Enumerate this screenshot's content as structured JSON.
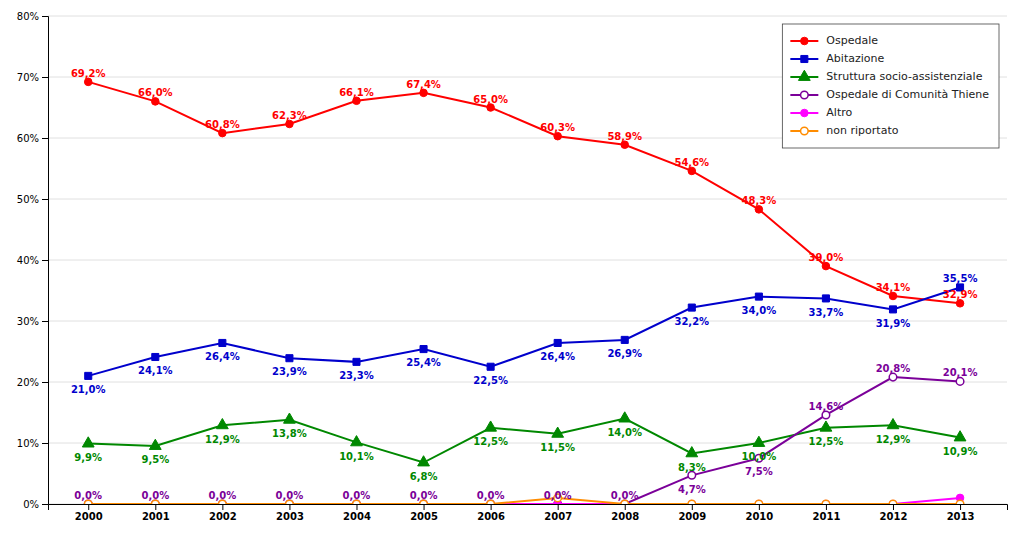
{
  "chart_data": {
    "type": "line",
    "x": [
      2000,
      2001,
      2002,
      2003,
      2004,
      2005,
      2006,
      2007,
      2008,
      2009,
      2010,
      2011,
      2012,
      2013
    ],
    "xlim": [
      1999.4,
      2013.7
    ],
    "xticks": [
      2000,
      2001,
      2002,
      2003,
      2004,
      2005,
      2006,
      2007,
      2008,
      2009,
      2010,
      2011,
      2012,
      2013
    ],
    "ylim": [
      0,
      80
    ],
    "yticks": [
      {
        "value": 0,
        "label": "0%"
      },
      {
        "value": 10,
        "label": "10%"
      },
      {
        "value": 20,
        "label": "20%"
      },
      {
        "value": 30,
        "label": "30%"
      },
      {
        "value": 40,
        "label": "40%"
      },
      {
        "value": 50,
        "label": "50%"
      },
      {
        "value": 60,
        "label": "60%"
      },
      {
        "value": 70,
        "label": "70%"
      },
      {
        "value": 80,
        "label": "80%"
      }
    ],
    "grid": true,
    "legend": "upper right",
    "data_labels": true,
    "series": [
      {
        "name": "Ospedale",
        "color": "#FF0000",
        "marker": "circle",
        "values": [
          69.2,
          66.0,
          60.8,
          62.3,
          66.1,
          67.4,
          65.0,
          60.3,
          58.9,
          54.6,
          48.3,
          39.0,
          34.1,
          32.9
        ],
        "value_labels": [
          "69,2%",
          "66,0%",
          "60,8%",
          "62,3%",
          "66,1%",
          "67,4%",
          "65,0%",
          "60,3%",
          "58,9%",
          "54,6%",
          "48,3%",
          "39,0%",
          "34,1%",
          "32,9%"
        ]
      },
      {
        "name": "Abitazione",
        "color": "#0000CC",
        "marker": "square",
        "values": [
          21.0,
          24.1,
          26.4,
          23.9,
          23.3,
          25.4,
          22.5,
          26.4,
          26.9,
          32.2,
          34.0,
          33.7,
          31.9,
          35.5
        ],
        "value_labels": [
          "21,0%",
          "24,1%",
          "26,4%",
          "23,9%",
          "23,3%",
          "25,4%",
          "22,5%",
          "26,4%",
          "26,9%",
          "32,2%",
          "34,0%",
          "33,7%",
          "31,9%",
          "35,5%"
        ]
      },
      {
        "name": "Struttura socio-assistenziale",
        "color": "#008800",
        "marker": "triangle",
        "values": [
          9.9,
          9.5,
          12.9,
          13.8,
          10.1,
          6.8,
          12.5,
          11.5,
          14.0,
          8.3,
          10.0,
          12.5,
          12.9,
          10.9
        ],
        "value_labels": [
          "9,9%",
          "9,5%",
          "12,9%",
          "13,8%",
          "10,1%",
          "6,8%",
          "12,5%",
          "11,5%",
          "14,0%",
          "8,3%",
          "10,0%",
          "12,5%",
          "12,9%",
          "10,9%"
        ]
      },
      {
        "name": "Ospedale di Comunità Thiene",
        "color": "#7B0099",
        "marker": "circle-open",
        "values": [
          0.0,
          0.0,
          0.0,
          0.0,
          0.0,
          0.0,
          0.0,
          0.0,
          0.0,
          4.7,
          7.5,
          14.6,
          20.8,
          20.1
        ],
        "value_labels": [
          "0,0%",
          "0,0%",
          "0,0%",
          "0,0%",
          "0,0%",
          "0,0%",
          "0,0%",
          "0,0%",
          "0,0%",
          "4,7%",
          "7,5%",
          "14,6%",
          "20,8%",
          "20,1%"
        ]
      },
      {
        "name": "Altro",
        "color": "#FF00FF",
        "marker": "circle",
        "values": [
          0.0,
          0.0,
          0.0,
          0.0,
          0.0,
          0.0,
          0.0,
          0.0,
          0.0,
          0.0,
          0.0,
          0.0,
          0.0,
          1.0
        ]
      },
      {
        "name": "non riportato",
        "color": "#FF8C00",
        "marker": "circle-open",
        "values": [
          0.0,
          0.0,
          0.0,
          0.0,
          0.0,
          0.0,
          0.0,
          1.0,
          0.0,
          0.0,
          0.0,
          0.0,
          0.0,
          0.0
        ]
      }
    ]
  }
}
